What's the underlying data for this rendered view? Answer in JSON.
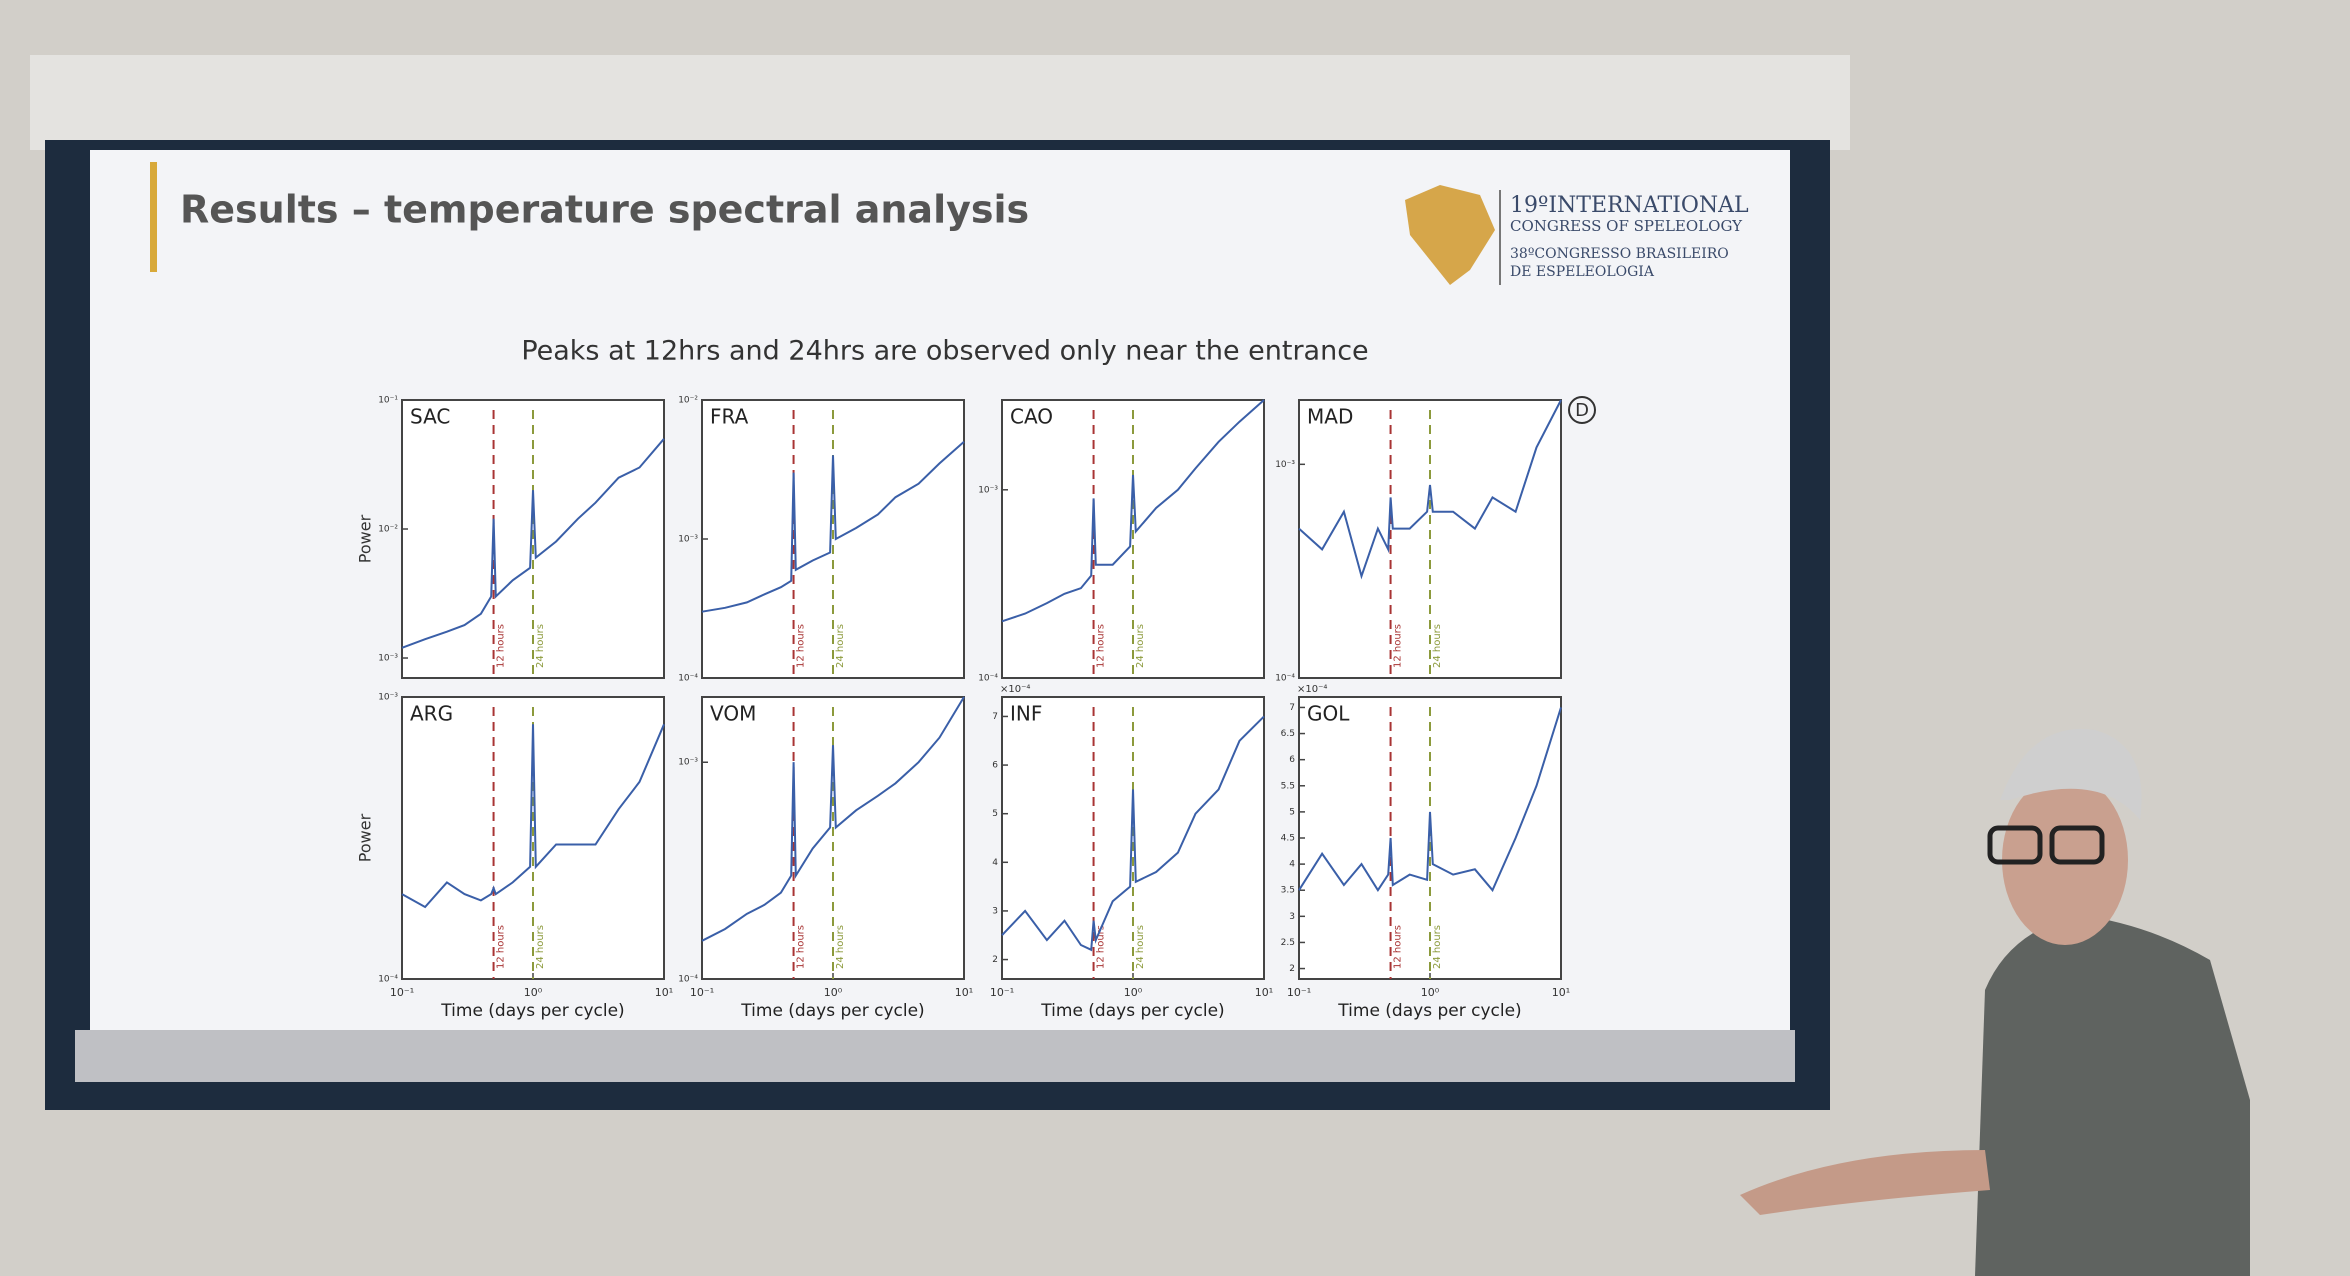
{
  "slide": {
    "title": "Results – temperature spectral analysis",
    "subtitle": "Peaks at 12hrs and 24hrs are observed only near the entrance",
    "panel_tag": "D",
    "logo": {
      "line1": "19ºINTERNATIONAL",
      "line2": "CONGRESS OF SPELEOLOGY",
      "line3": "38ºCONGRESSO BRASILEIRO",
      "line4": "DE ESPELEOLOGIA"
    }
  },
  "chart_data": [
    {
      "type": "line",
      "title": "SAC",
      "ylabel": "Power",
      "xscale": "log",
      "yscale": "log",
      "xlim": [
        0.1,
        10
      ],
      "ylim": [
        0.0007,
        0.1
      ],
      "yticks": [
        {
          "value": 0.001,
          "label": "10⁻³"
        },
        {
          "value": 0.01,
          "label": "10⁻²"
        },
        {
          "value": 0.1,
          "label": "10⁻¹"
        }
      ],
      "x": [
        0.1,
        0.15,
        0.22,
        0.3,
        0.4,
        0.48,
        0.5,
        0.52,
        0.7,
        0.95,
        1,
        1.05,
        1.5,
        2.2,
        3,
        4.5,
        6.5,
        10
      ],
      "color": "#3a5fa8",
      "values": [
        0.0012,
        0.0014,
        0.0016,
        0.0018,
        0.0022,
        0.003,
        0.012,
        0.003,
        0.004,
        0.005,
        0.02,
        0.006,
        0.008,
        0.012,
        0.016,
        0.025,
        0.03,
        0.05
      ],
      "vlines": [
        {
          "x": 0.5,
          "label": "12 hours",
          "color": "#a83434"
        },
        {
          "x": 1,
          "label": "24 hours",
          "color": "#8c9a3c"
        }
      ]
    },
    {
      "type": "line",
      "title": "FRA",
      "xscale": "log",
      "yscale": "log",
      "xlim": [
        0.1,
        10
      ],
      "ylim": [
        0.0001,
        0.01
      ],
      "yticks": [
        {
          "value": 0.0001,
          "label": "10⁻⁴"
        },
        {
          "value": 0.001,
          "label": "10⁻³"
        },
        {
          "value": 0.01,
          "label": "10⁻²"
        }
      ],
      "x": [
        0.1,
        0.15,
        0.22,
        0.3,
        0.4,
        0.48,
        0.5,
        0.52,
        0.7,
        0.95,
        1,
        1.05,
        1.5,
        2.2,
        3,
        4.5,
        6.5,
        10
      ],
      "color": "#3a5fa8",
      "values": [
        0.0003,
        0.00032,
        0.00035,
        0.0004,
        0.00045,
        0.0005,
        0.003,
        0.0006,
        0.0007,
        0.0008,
        0.004,
        0.001,
        0.0012,
        0.0015,
        0.002,
        0.0025,
        0.0035,
        0.005
      ],
      "vlines": [
        {
          "x": 0.5,
          "label": "12 hours",
          "color": "#a83434"
        },
        {
          "x": 1,
          "label": "24 hours",
          "color": "#8c9a3c"
        }
      ]
    },
    {
      "type": "line",
      "title": "CAO",
      "xscale": "log",
      "yscale": "log",
      "xlim": [
        0.1,
        10
      ],
      "ylim": [
        0.0001,
        0.003
      ],
      "yticks": [
        {
          "value": 0.0001,
          "label": "10⁻⁴"
        },
        {
          "value": 0.001,
          "label": "10⁻³"
        }
      ],
      "x": [
        0.1,
        0.15,
        0.22,
        0.3,
        0.4,
        0.48,
        0.5,
        0.52,
        0.7,
        0.95,
        1,
        1.05,
        1.5,
        2.2,
        3,
        4.5,
        6.5,
        10
      ],
      "color": "#3a5fa8",
      "values": [
        0.0002,
        0.00022,
        0.00025,
        0.00028,
        0.0003,
        0.00035,
        0.0009,
        0.0004,
        0.0004,
        0.0005,
        0.0012,
        0.0006,
        0.0008,
        0.001,
        0.0013,
        0.0018,
        0.0023,
        0.003
      ],
      "vlines": [
        {
          "x": 0.5,
          "label": "12 hours",
          "color": "#a83434"
        },
        {
          "x": 1,
          "label": "24 hours",
          "color": "#8c9a3c"
        }
      ]
    },
    {
      "type": "line",
      "title": "MAD",
      "xscale": "log",
      "yscale": "log",
      "xlim": [
        0.1,
        10
      ],
      "ylim": [
        0.0001,
        0.002
      ],
      "yticks": [
        {
          "value": 0.0001,
          "label": "10⁻⁴"
        },
        {
          "value": 0.001,
          "label": "10⁻³"
        }
      ],
      "x": [
        0.1,
        0.15,
        0.22,
        0.3,
        0.4,
        0.48,
        0.5,
        0.52,
        0.7,
        0.95,
        1,
        1.05,
        1.5,
        2.2,
        3,
        4.5,
        6.5,
        10
      ],
      "color": "#3a5fa8",
      "values": [
        0.0005,
        0.0004,
        0.0006,
        0.0003,
        0.0005,
        0.0004,
        0.0007,
        0.0005,
        0.0005,
        0.0006,
        0.0008,
        0.0006,
        0.0006,
        0.0005,
        0.0007,
        0.0006,
        0.0012,
        0.002
      ],
      "vlines": [
        {
          "x": 0.5,
          "label": "12 hours",
          "color": "#a83434"
        },
        {
          "x": 1,
          "label": "24 hours",
          "color": "#8c9a3c"
        }
      ]
    },
    {
      "type": "line",
      "title": "ARG",
      "ylabel": "Power",
      "xlabel": "Time (days per cycle)",
      "xscale": "log",
      "yscale": "log",
      "xlim": [
        0.1,
        10
      ],
      "ylim": [
        0.0001,
        0.001
      ],
      "xticks": [
        {
          "value": 0.1,
          "label": "10⁻¹"
        },
        {
          "value": 1,
          "label": "10⁰"
        },
        {
          "value": 10,
          "label": "10¹"
        }
      ],
      "yticks": [
        {
          "value": 0.0001,
          "label": "10⁻⁴"
        },
        {
          "value": 0.001,
          "label": "10⁻³"
        }
      ],
      "x": [
        0.1,
        0.15,
        0.22,
        0.3,
        0.4,
        0.48,
        0.5,
        0.52,
        0.7,
        0.95,
        1,
        1.05,
        1.5,
        2.2,
        3,
        4.5,
        6.5,
        10
      ],
      "color": "#3a5fa8",
      "values": [
        0.0002,
        0.00018,
        0.00022,
        0.0002,
        0.00019,
        0.0002,
        0.00021,
        0.0002,
        0.00022,
        0.00025,
        0.0008,
        0.00025,
        0.0003,
        0.0003,
        0.0003,
        0.0004,
        0.0005,
        0.0008
      ],
      "vlines": [
        {
          "x": 0.5,
          "label": "12 hours",
          "color": "#a83434"
        },
        {
          "x": 1,
          "label": "24 hours",
          "color": "#8c9a3c"
        }
      ]
    },
    {
      "type": "line",
      "title": "VOM",
      "xlabel": "Time (days per cycle)",
      "xscale": "log",
      "yscale": "log",
      "xlim": [
        0.1,
        10
      ],
      "ylim": [
        0.0001,
        0.002
      ],
      "xticks": [
        {
          "value": 0.1,
          "label": "10⁻¹"
        },
        {
          "value": 1,
          "label": "10⁰"
        },
        {
          "value": 10,
          "label": "10¹"
        }
      ],
      "yticks": [
        {
          "value": 0.0001,
          "label": "10⁻⁴"
        },
        {
          "value": 0.001,
          "label": "10⁻³"
        }
      ],
      "x": [
        0.1,
        0.15,
        0.22,
        0.3,
        0.4,
        0.48,
        0.5,
        0.52,
        0.7,
        0.95,
        1,
        1.05,
        1.5,
        2.2,
        3,
        4.5,
        6.5,
        10
      ],
      "color": "#3a5fa8",
      "values": [
        0.00015,
        0.00017,
        0.0002,
        0.00022,
        0.00025,
        0.0003,
        0.001,
        0.0003,
        0.0004,
        0.0005,
        0.0012,
        0.0005,
        0.0006,
        0.0007,
        0.0008,
        0.001,
        0.0013,
        0.002
      ],
      "vlines": [
        {
          "x": 0.5,
          "label": "12 hours",
          "color": "#a83434"
        },
        {
          "x": 1,
          "label": "24 hours",
          "color": "#8c9a3c"
        }
      ]
    },
    {
      "type": "line",
      "title": "INF",
      "xlabel": "Time (days per cycle)",
      "y_offset_label": "×10⁻⁴",
      "xscale": "log",
      "yscale": "linear",
      "xlim": [
        0.1,
        10
      ],
      "ylim": [
        1.6,
        7.4
      ],
      "xticks": [
        {
          "value": 0.1,
          "label": "10⁻¹"
        },
        {
          "value": 1,
          "label": "10⁰"
        },
        {
          "value": 10,
          "label": "10¹"
        }
      ],
      "yticks": [
        2,
        3,
        4,
        5,
        6,
        7
      ],
      "x": [
        0.1,
        0.15,
        0.22,
        0.3,
        0.4,
        0.48,
        0.5,
        0.52,
        0.7,
        0.95,
        1,
        1.05,
        1.5,
        2.2,
        3,
        4.5,
        6.5,
        10
      ],
      "color": "#3a5fa8",
      "values": [
        2.5,
        3,
        2.4,
        2.8,
        2.3,
        2.2,
        2.8,
        2.4,
        3.2,
        3.5,
        5.5,
        3.6,
        3.8,
        4.2,
        5,
        5.5,
        6.5,
        7
      ],
      "vlines": [
        {
          "x": 0.5,
          "label": "12 hours",
          "color": "#a83434"
        },
        {
          "x": 1,
          "label": "24 hours",
          "color": "#8c9a3c"
        }
      ]
    },
    {
      "type": "line",
      "title": "GOL",
      "xlabel": "Time (days per cycle)",
      "y_offset_label": "×10⁻⁴",
      "xscale": "log",
      "yscale": "linear",
      "xlim": [
        0.1,
        10
      ],
      "ylim": [
        1.8,
        7.2
      ],
      "xticks": [
        {
          "value": 0.1,
          "label": "10⁻¹"
        },
        {
          "value": 1,
          "label": "10⁰"
        },
        {
          "value": 10,
          "label": "10¹"
        }
      ],
      "yticks": [
        2,
        2.5,
        3,
        3.5,
        4,
        4.5,
        5,
        5.5,
        6,
        6.5,
        7
      ],
      "x": [
        0.1,
        0.15,
        0.22,
        0.3,
        0.4,
        0.48,
        0.5,
        0.52,
        0.7,
        0.95,
        1,
        1.05,
        1.5,
        2.2,
        3,
        4.5,
        6.5,
        10
      ],
      "color": "#3a5fa8",
      "values": [
        3.5,
        4.2,
        3.6,
        4,
        3.5,
        3.8,
        4.5,
        3.6,
        3.8,
        3.7,
        5,
        4,
        3.8,
        3.9,
        3.5,
        4.5,
        5.5,
        7
      ],
      "vlines": [
        {
          "x": 0.5,
          "label": "12 hours",
          "color": "#a83434"
        },
        {
          "x": 1,
          "label": "24 hours",
          "color": "#8c9a3c"
        }
      ]
    }
  ]
}
